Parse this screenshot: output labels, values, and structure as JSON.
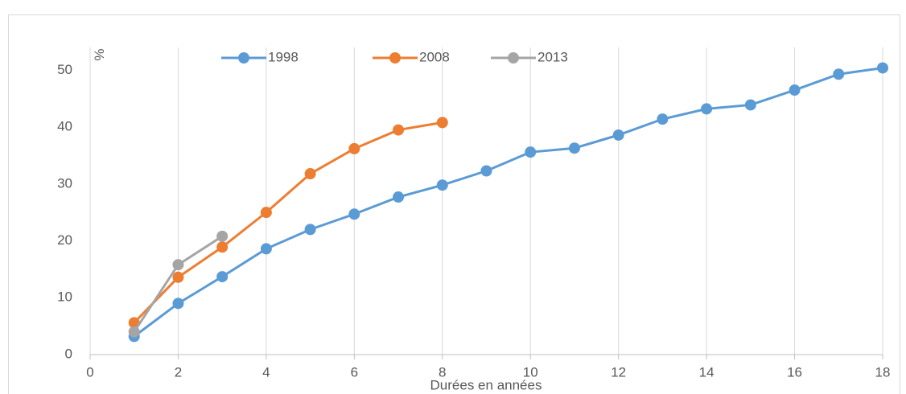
{
  "chart_data": {
    "type": "line",
    "x_label": "Durées en années",
    "y_label": "%",
    "xlim": [
      0,
      18
    ],
    "xticks": [
      0,
      2,
      4,
      6,
      8,
      10,
      12,
      14,
      16,
      18
    ],
    "ylim": [
      0,
      54
    ],
    "yticks": [
      0,
      10,
      20,
      30,
      40,
      50
    ],
    "grid": "x",
    "legend": "top",
    "series": [
      {
        "name": "1998",
        "color": "#5b9bd5",
        "x": [
          1,
          2,
          3,
          4,
          5,
          6,
          7,
          8,
          9,
          10,
          11,
          12,
          13,
          14,
          15,
          16,
          17,
          18
        ],
        "values": [
          3.2,
          9.0,
          13.7,
          18.6,
          22.0,
          24.7,
          27.7,
          29.8,
          32.3,
          35.6,
          36.3,
          38.6,
          41.4,
          43.2,
          43.9,
          46.5,
          49.3,
          50.4
        ]
      },
      {
        "name": "2008",
        "color": "#ed7d31",
        "x": [
          1,
          2,
          3,
          4,
          5,
          6,
          7,
          8
        ],
        "values": [
          5.6,
          13.6,
          18.9,
          25.0,
          31.8,
          36.2,
          39.5,
          40.8
        ]
      },
      {
        "name": "2013",
        "color": "#a5a5a5",
        "x": [
          1,
          2,
          3
        ],
        "values": [
          4.0,
          15.8,
          20.8
        ]
      }
    ]
  }
}
